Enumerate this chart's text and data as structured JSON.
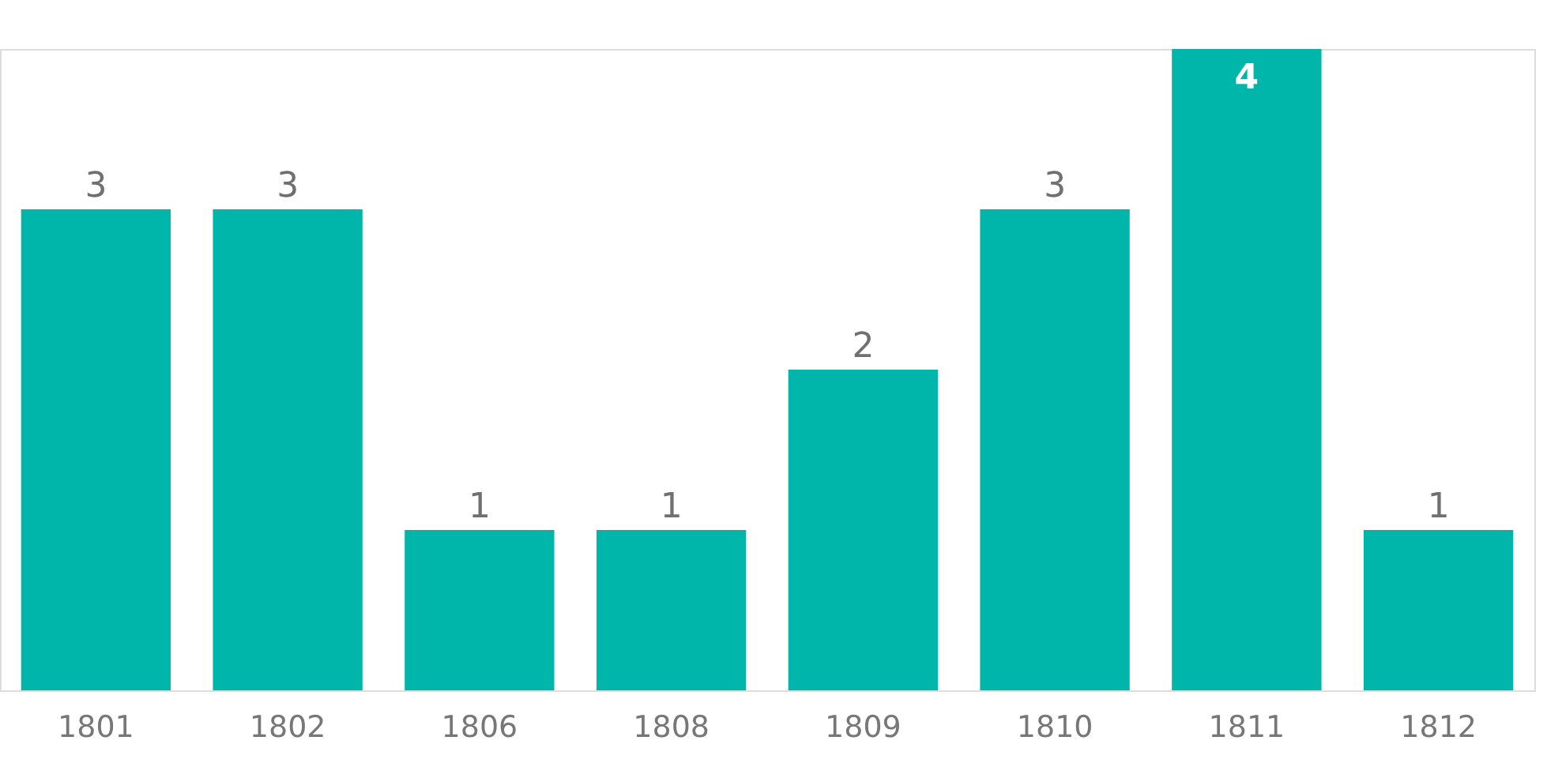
{
  "chart_data": {
    "type": "bar",
    "categories": [
      "1801",
      "1802",
      "1806",
      "1808",
      "1809",
      "1810",
      "1811",
      "1812"
    ],
    "values": [
      3,
      3,
      1,
      1,
      2,
      3,
      4,
      1
    ],
    "color": "#00b5aa",
    "data_labels": true
  }
}
